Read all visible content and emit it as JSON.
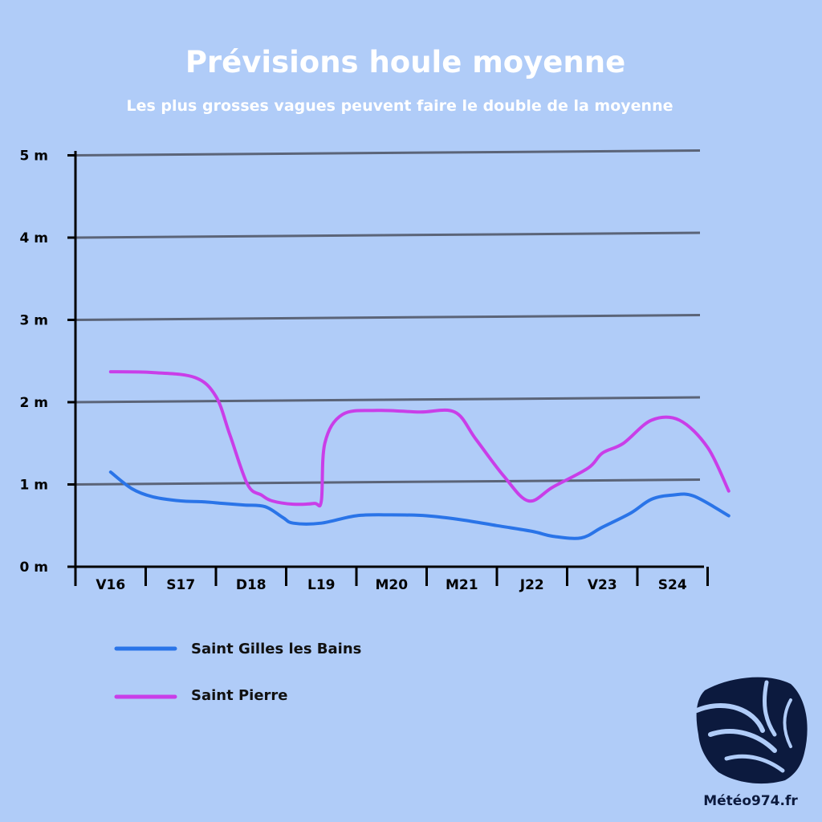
{
  "chart_data": {
    "type": "line",
    "title": "Prévisions houle moyenne",
    "subtitle": "Les plus grosses vagues peuvent faire le double de la moyenne",
    "xlabel": "",
    "ylabel": "",
    "categories": [
      "V16",
      "S17",
      "D18",
      "L19",
      "M20",
      "M21",
      "J22",
      "V23",
      "S24"
    ],
    "y_ticks": [
      "0 m",
      "1 m",
      "2 m",
      "3 m",
      "4 m",
      "5 m"
    ],
    "ylim": [
      0,
      5
    ],
    "grid": true,
    "legend_position": "bottom-left",
    "series": [
      {
        "name": "Saint Gilles les Bains",
        "color": "#2a74e8",
        "x": [
          0,
          0.3,
          0.6,
          1.0,
          1.3,
          1.6,
          1.9,
          2.2,
          2.45,
          2.6,
          3.0,
          3.5,
          4.0,
          4.5,
          5.0,
          5.5,
          6.0,
          6.3,
          6.7,
          7.0,
          7.4,
          7.7,
          8.0,
          8.3,
          8.8
        ],
        "values": [
          1.15,
          0.95,
          0.85,
          0.8,
          0.79,
          0.77,
          0.75,
          0.73,
          0.6,
          0.53,
          0.53,
          0.62,
          0.63,
          0.62,
          0.57,
          0.5,
          0.43,
          0.37,
          0.35,
          0.48,
          0.65,
          0.82,
          0.87,
          0.86,
          0.62
        ]
      },
      {
        "name": "Saint Pierre",
        "color": "#c93ee8",
        "x": [
          0,
          0.6,
          1.2,
          1.5,
          1.7,
          1.95,
          2.15,
          2.3,
          2.6,
          2.9,
          3.0,
          3.05,
          3.3,
          3.8,
          4.4,
          4.9,
          5.2,
          5.6,
          5.95,
          6.3,
          6.8,
          7.0,
          7.3,
          7.7,
          8.1,
          8.5,
          8.8
        ],
        "values": [
          2.37,
          2.36,
          2.3,
          2.07,
          1.6,
          1.0,
          0.87,
          0.8,
          0.76,
          0.77,
          0.8,
          1.5,
          1.85,
          1.9,
          1.88,
          1.88,
          1.55,
          1.1,
          0.8,
          0.97,
          1.2,
          1.38,
          1.5,
          1.78,
          1.78,
          1.45,
          0.92
        ]
      }
    ]
  },
  "brand": {
    "name": "Météo974.fr",
    "logo_icon": "reunion-island-wave-logo-icon"
  }
}
